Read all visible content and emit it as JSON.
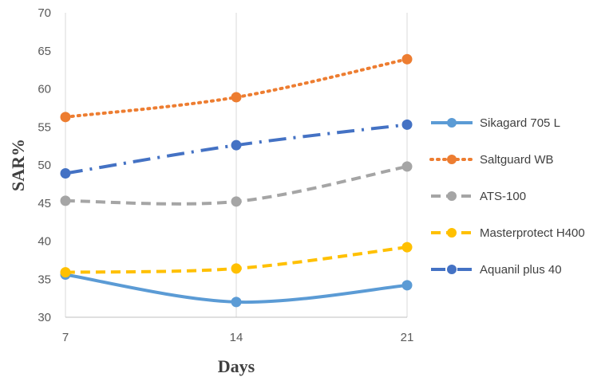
{
  "chart_data": {
    "type": "line",
    "title": "",
    "xlabel": "Days",
    "ylabel": "SAR%",
    "x": [
      7,
      14,
      21
    ],
    "x_ticks": [
      "7",
      "14",
      "21"
    ],
    "y_ticks": [
      "30",
      "35",
      "40",
      "45",
      "50",
      "55",
      "60",
      "65",
      "70"
    ],
    "ylim": [
      30,
      70
    ],
    "grid": "vertical",
    "legend_position": "right",
    "series": [
      {
        "name": "Sikagard 705 L",
        "values": [
          35.6,
          32.0,
          34.2
        ],
        "color": "#5B9BD5",
        "line_style": "solid",
        "smooth": true
      },
      {
        "name": "Saltguard WB",
        "values": [
          56.3,
          58.9,
          63.9
        ],
        "color": "#ED7D31",
        "line_style": "dotted",
        "smooth": true
      },
      {
        "name": "ATS-100",
        "values": [
          45.3,
          45.2,
          49.8
        ],
        "color": "#A5A5A5",
        "line_style": "dashed",
        "smooth": true
      },
      {
        "name": "Masterprotect H400",
        "values": [
          35.9,
          36.4,
          39.2
        ],
        "color": "#FFC000",
        "line_style": "dashed",
        "smooth": true
      },
      {
        "name": "Aquanil plus 40",
        "values": [
          48.9,
          52.6,
          55.3
        ],
        "color": "#4472C4",
        "line_style": "dashdot",
        "smooth": true
      }
    ]
  }
}
